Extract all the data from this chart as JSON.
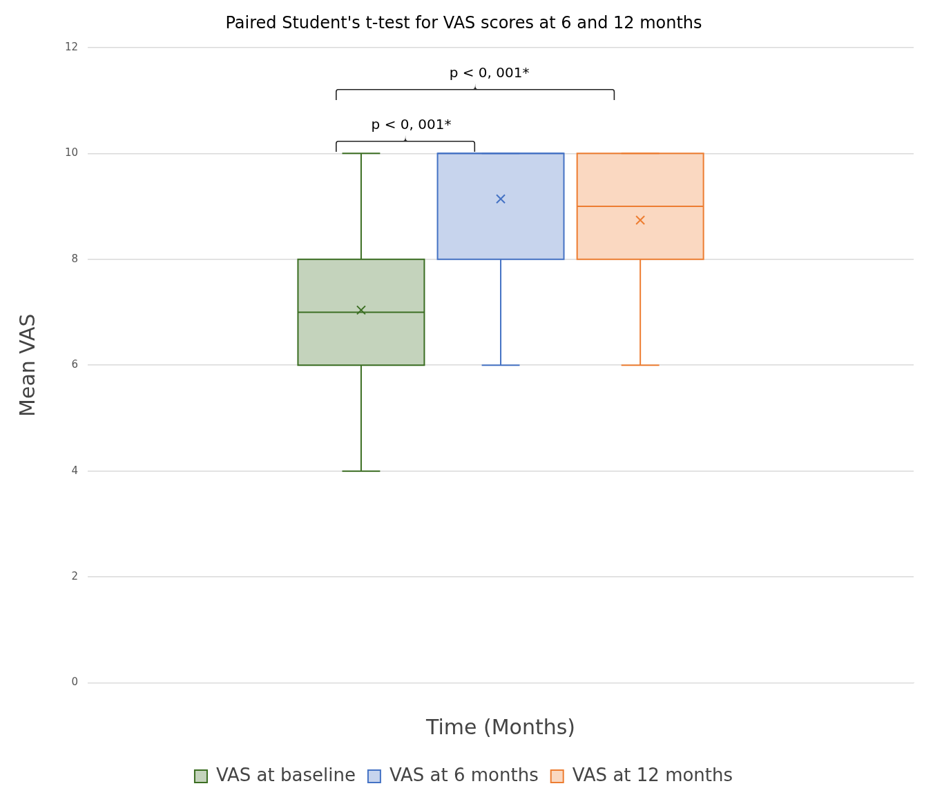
{
  "chart_data": {
    "type": "box",
    "title": "Paired Student's t-test for VAS scores at 6 and 12 months",
    "xlabel": "Time (Months)",
    "ylabel": "Mean VAS",
    "categories": [
      null
    ],
    "series": [
      {
        "name": "VAS at baseline",
        "color": "#3b6e22",
        "boxes": [
          {
            "low": 4,
            "q1": 6,
            "median": 7,
            "q3": 8,
            "high": 10,
            "mean": 7.04
          }
        ]
      },
      {
        "name": "VAS at 6 months",
        "color": "#4472c4",
        "boxes": [
          {
            "low": 6,
            "q1": 8,
            "median": 10,
            "q3": 10,
            "high": 10,
            "mean": 9.14
          }
        ]
      },
      {
        "name": "VAS at 12 months",
        "color": "#ed7d31",
        "boxes": [
          {
            "low": 6,
            "q1": 8,
            "median": 9,
            "q3": 10,
            "high": 10,
            "mean": 8.74
          }
        ]
      }
    ],
    "ylim": [
      0,
      12
    ],
    "yticks": [
      0,
      2,
      4,
      6,
      8,
      10,
      12
    ],
    "grid": "y",
    "legend": "bottom",
    "annotations": [
      "p < 0, 001*",
      "p < 0, 001*"
    ]
  }
}
